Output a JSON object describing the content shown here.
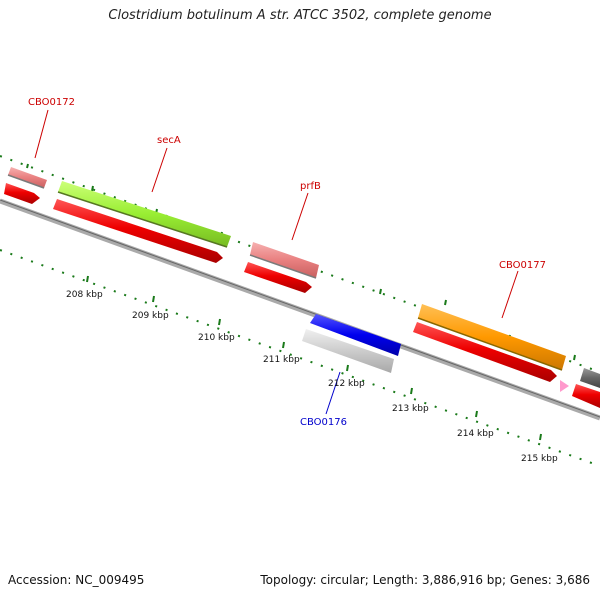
{
  "title": "Clostridium botulinum A str. ATCC 3502, complete genome",
  "footer": {
    "accession": "Accession: NC_009495",
    "summary": "Topology: circular; Length: 3,886,916 bp; Genes: 3,686"
  },
  "scale_labels": [
    "208 kbp",
    "209 kbp",
    "210 kbp",
    "211 kbp",
    "212 kbp",
    "213 kbp",
    "214 kbp",
    "215 kbp"
  ],
  "gene_labels": {
    "cbo0172": "CBO0172",
    "seca": "secA",
    "prfb": "prfB",
    "cbo0177": "CBO0177",
    "cbo0176": "CBO0176"
  },
  "colors": {
    "label_forward": "#cc0000",
    "label_reverse": "#0000cc",
    "tick_green": "#1a7a1a",
    "backbone": "#888888"
  }
}
